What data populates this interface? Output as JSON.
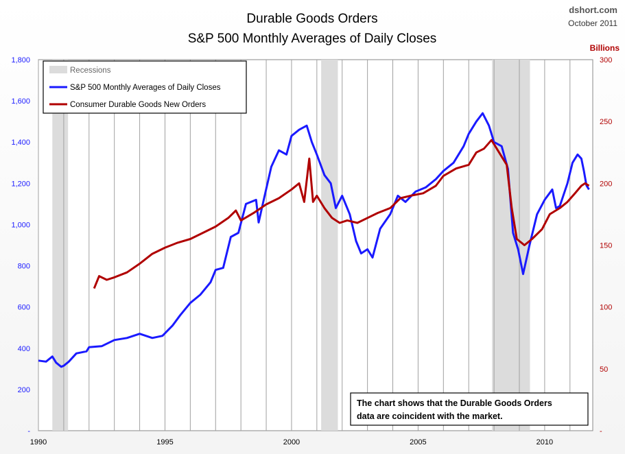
{
  "chart_data": {
    "type": "line",
    "title": "Durable Goods Orders",
    "subtitle": "S&P 500 Monthly Averages of Daily Closes",
    "source": "dshort.com",
    "date": "October 2011",
    "y_right_label": "Billions",
    "xlim": [
      1990.0,
      2011.9
    ],
    "ylim_left": [
      0,
      1800
    ],
    "ylim_right": [
      0,
      300
    ],
    "x_ticks": [
      1990,
      1995,
      2000,
      2005,
      2010
    ],
    "y_ticks_left": [
      0,
      200,
      400,
      600,
      800,
      1000,
      1200,
      1400,
      1600,
      1800
    ],
    "y_tick_labels_left": [
      "-",
      "200",
      "400",
      "600",
      "800",
      "1,000",
      "1,200",
      "1,400",
      "1,600",
      "1,800"
    ],
    "y_ticks_right": [
      0,
      50,
      100,
      150,
      200,
      250,
      300
    ],
    "y_tick_labels_right": [
      "-",
      "50",
      "100",
      "150",
      "200",
      "250",
      "300"
    ],
    "grid": "vertical lines",
    "legend_position": "top-left",
    "legend": {
      "recessions": "Recessions",
      "series1": "S&P 500 Monthly Averages of Daily Closes",
      "series2": "Consumer Durable Goods New Orders"
    },
    "recessions": [
      [
        1990.55,
        1991.17
      ],
      [
        2001.17,
        2001.83
      ],
      [
        2007.92,
        2009.42
      ]
    ],
    "series": [
      {
        "name": "S&P 500 Monthly Averages of Daily Closes",
        "color": "#1a1aff",
        "axis": "left",
        "points": [
          [
            1990.0,
            340
          ],
          [
            1990.3,
            335
          ],
          [
            1990.55,
            360
          ],
          [
            1990.7,
            330
          ],
          [
            1990.9,
            310
          ],
          [
            1991.0,
            315
          ],
          [
            1991.2,
            335
          ],
          [
            1991.5,
            375
          ],
          [
            1991.9,
            385
          ],
          [
            1992.0,
            405
          ],
          [
            1992.5,
            410
          ],
          [
            1993.0,
            440
          ],
          [
            1993.5,
            450
          ],
          [
            1994.0,
            470
          ],
          [
            1994.5,
            450
          ],
          [
            1994.9,
            460
          ],
          [
            1995.3,
            510
          ],
          [
            1995.6,
            560
          ],
          [
            1996.0,
            620
          ],
          [
            1996.4,
            660
          ],
          [
            1996.8,
            720
          ],
          [
            1997.0,
            780
          ],
          [
            1997.3,
            790
          ],
          [
            1997.6,
            940
          ],
          [
            1997.9,
            960
          ],
          [
            1998.2,
            1100
          ],
          [
            1998.6,
            1120
          ],
          [
            1998.7,
            1010
          ],
          [
            1998.9,
            1120
          ],
          [
            1999.2,
            1280
          ],
          [
            1999.5,
            1360
          ],
          [
            1999.8,
            1340
          ],
          [
            2000.0,
            1430
          ],
          [
            2000.3,
            1460
          ],
          [
            2000.6,
            1480
          ],
          [
            2000.8,
            1400
          ],
          [
            2001.0,
            1340
          ],
          [
            2001.3,
            1240
          ],
          [
            2001.55,
            1200
          ],
          [
            2001.75,
            1080
          ],
          [
            2002.0,
            1140
          ],
          [
            2002.3,
            1050
          ],
          [
            2002.55,
            920
          ],
          [
            2002.75,
            860
          ],
          [
            2003.0,
            880
          ],
          [
            2003.2,
            840
          ],
          [
            2003.5,
            980
          ],
          [
            2003.9,
            1050
          ],
          [
            2004.2,
            1140
          ],
          [
            2004.5,
            1110
          ],
          [
            2004.9,
            1160
          ],
          [
            2005.3,
            1180
          ],
          [
            2005.7,
            1220
          ],
          [
            2006.0,
            1260
          ],
          [
            2006.4,
            1300
          ],
          [
            2006.8,
            1380
          ],
          [
            2007.0,
            1440
          ],
          [
            2007.3,
            1500
          ],
          [
            2007.55,
            1540
          ],
          [
            2007.8,
            1480
          ],
          [
            2008.0,
            1400
          ],
          [
            2008.3,
            1380
          ],
          [
            2008.55,
            1270
          ],
          [
            2008.75,
            960
          ],
          [
            2008.95,
            880
          ],
          [
            2009.15,
            760
          ],
          [
            2009.4,
            900
          ],
          [
            2009.7,
            1050
          ],
          [
            2010.0,
            1120
          ],
          [
            2010.3,
            1170
          ],
          [
            2010.45,
            1080
          ],
          [
            2010.6,
            1090
          ],
          [
            2010.9,
            1200
          ],
          [
            2011.1,
            1300
          ],
          [
            2011.3,
            1340
          ],
          [
            2011.45,
            1320
          ],
          [
            2011.55,
            1260
          ],
          [
            2011.65,
            1190
          ],
          [
            2011.75,
            1170
          ]
        ]
      },
      {
        "name": "Consumer Durable Goods New Orders",
        "color": "#b00000",
        "axis": "right",
        "points": [
          [
            1992.2,
            115
          ],
          [
            1992.4,
            125
          ],
          [
            1992.7,
            122
          ],
          [
            1993.0,
            124
          ],
          [
            1993.5,
            128
          ],
          [
            1994.0,
            135
          ],
          [
            1994.5,
            143
          ],
          [
            1995.0,
            148
          ],
          [
            1995.5,
            152
          ],
          [
            1996.0,
            155
          ],
          [
            1996.5,
            160
          ],
          [
            1997.0,
            165
          ],
          [
            1997.5,
            172
          ],
          [
            1997.8,
            178
          ],
          [
            1998.0,
            170
          ],
          [
            1998.5,
            176
          ],
          [
            1999.0,
            183
          ],
          [
            1999.5,
            188
          ],
          [
            2000.0,
            195
          ],
          [
            2000.3,
            200
          ],
          [
            2000.5,
            185
          ],
          [
            2000.7,
            220
          ],
          [
            2000.85,
            185
          ],
          [
            2001.0,
            190
          ],
          [
            2001.3,
            180
          ],
          [
            2001.6,
            172
          ],
          [
            2001.9,
            168
          ],
          [
            2002.2,
            170
          ],
          [
            2002.6,
            168
          ],
          [
            2003.0,
            172
          ],
          [
            2003.4,
            176
          ],
          [
            2003.9,
            180
          ],
          [
            2004.3,
            188
          ],
          [
            2004.7,
            190
          ],
          [
            2005.2,
            192
          ],
          [
            2005.7,
            198
          ],
          [
            2006.0,
            206
          ],
          [
            2006.5,
            212
          ],
          [
            2007.0,
            215
          ],
          [
            2007.3,
            225
          ],
          [
            2007.6,
            228
          ],
          [
            2007.9,
            235
          ],
          [
            2008.2,
            225
          ],
          [
            2008.5,
            215
          ],
          [
            2008.7,
            180
          ],
          [
            2008.9,
            155
          ],
          [
            2009.2,
            150
          ],
          [
            2009.5,
            155
          ],
          [
            2009.9,
            163
          ],
          [
            2010.2,
            175
          ],
          [
            2010.6,
            180
          ],
          [
            2010.9,
            185
          ],
          [
            2011.2,
            192
          ],
          [
            2011.45,
            198
          ],
          [
            2011.6,
            200
          ],
          [
            2011.75,
            198
          ]
        ]
      }
    ],
    "annotation": [
      "The chart shows that the Durable Goods Orders",
      "data are coincident with the market."
    ]
  }
}
